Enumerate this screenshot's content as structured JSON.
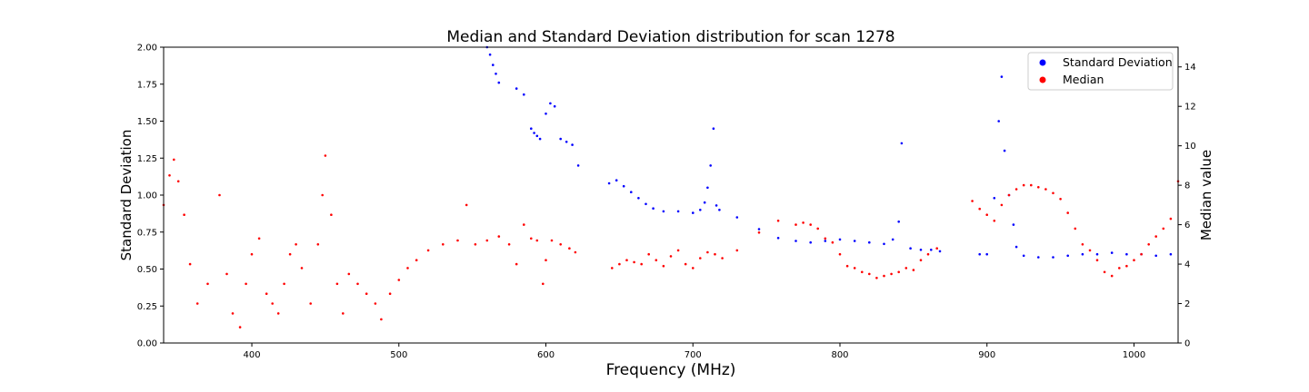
{
  "chart_data": {
    "type": "scatter",
    "title": "Median and Standard Deviation distribution for scan 1278",
    "xlabel": "Frequency (MHz)",
    "ylabel_left": "Standard Deviation",
    "ylabel_right": "Median value",
    "xlim": [
      340,
      1030
    ],
    "ylim_left": [
      0,
      2
    ],
    "ylim_right": [
      0,
      15
    ],
    "x_ticks": [
      400,
      500,
      600,
      700,
      800,
      900,
      1000
    ],
    "y_ticks_left": [
      "0.00",
      "0.25",
      "0.50",
      "0.75",
      "1.00",
      "1.25",
      "1.50",
      "1.75",
      "2.00"
    ],
    "y_ticks_right": [
      "0",
      "2",
      "4",
      "6",
      "8",
      "10",
      "12",
      "14"
    ],
    "grid": false,
    "legend_position": "top-right",
    "series": [
      {
        "name": "Standard Deviation",
        "color": "#0000ff",
        "axis": "left",
        "points": [
          [
            560,
            2.0
          ],
          [
            562,
            1.95
          ],
          [
            564,
            1.88
          ],
          [
            566,
            1.82
          ],
          [
            568,
            1.76
          ],
          [
            580,
            1.72
          ],
          [
            585,
            1.68
          ],
          [
            590,
            1.45
          ],
          [
            592,
            1.42
          ],
          [
            594,
            1.4
          ],
          [
            596,
            1.38
          ],
          [
            600,
            1.55
          ],
          [
            603,
            1.62
          ],
          [
            606,
            1.6
          ],
          [
            610,
            1.38
          ],
          [
            614,
            1.36
          ],
          [
            618,
            1.34
          ],
          [
            622,
            1.2
          ],
          [
            643,
            1.08
          ],
          [
            648,
            1.1
          ],
          [
            653,
            1.06
          ],
          [
            658,
            1.02
          ],
          [
            663,
            0.98
          ],
          [
            668,
            0.94
          ],
          [
            673,
            0.91
          ],
          [
            680,
            0.89
          ],
          [
            690,
            0.89
          ],
          [
            700,
            0.88
          ],
          [
            705,
            0.9
          ],
          [
            708,
            0.95
          ],
          [
            710,
            1.05
          ],
          [
            712,
            1.2
          ],
          [
            714,
            1.45
          ],
          [
            716,
            0.93
          ],
          [
            718,
            0.9
          ],
          [
            730,
            0.85
          ],
          [
            745,
            0.77
          ],
          [
            758,
            0.71
          ],
          [
            770,
            0.69
          ],
          [
            780,
            0.68
          ],
          [
            790,
            0.69
          ],
          [
            800,
            0.7
          ],
          [
            810,
            0.69
          ],
          [
            820,
            0.68
          ],
          [
            830,
            0.67
          ],
          [
            836,
            0.7
          ],
          [
            840,
            0.82
          ],
          [
            842,
            1.35
          ],
          [
            848,
            0.64
          ],
          [
            855,
            0.63
          ],
          [
            862,
            0.63
          ],
          [
            868,
            0.62
          ],
          [
            895,
            0.6
          ],
          [
            900,
            0.6
          ],
          [
            905,
            0.98
          ],
          [
            908,
            1.5
          ],
          [
            910,
            1.8
          ],
          [
            912,
            1.3
          ],
          [
            915,
            1.0
          ],
          [
            918,
            0.8
          ],
          [
            920,
            0.65
          ],
          [
            925,
            0.59
          ],
          [
            935,
            0.58
          ],
          [
            945,
            0.58
          ],
          [
            955,
            0.59
          ],
          [
            965,
            0.6
          ],
          [
            975,
            0.6
          ],
          [
            985,
            0.61
          ],
          [
            995,
            0.6
          ],
          [
            1005,
            0.6
          ],
          [
            1015,
            0.59
          ],
          [
            1025,
            0.6
          ]
        ]
      },
      {
        "name": "Median",
        "color": "#ff0000",
        "axis": "right",
        "points": [
          [
            340,
            7.0
          ],
          [
            344,
            8.5
          ],
          [
            347,
            9.3
          ],
          [
            350,
            8.2
          ],
          [
            354,
            6.5
          ],
          [
            358,
            4.0
          ],
          [
            363,
            2.0
          ],
          [
            370,
            3.0
          ],
          [
            378,
            7.5
          ],
          [
            383,
            3.5
          ],
          [
            387,
            1.5
          ],
          [
            392,
            0.8
          ],
          [
            396,
            3.0
          ],
          [
            400,
            4.5
          ],
          [
            405,
            5.3
          ],
          [
            410,
            2.5
          ],
          [
            414,
            2.0
          ],
          [
            418,
            1.5
          ],
          [
            422,
            3.0
          ],
          [
            426,
            4.5
          ],
          [
            430,
            5.0
          ],
          [
            434,
            3.8
          ],
          [
            440,
            2.0
          ],
          [
            445,
            5.0
          ],
          [
            448,
            7.5
          ],
          [
            450,
            9.5
          ],
          [
            454,
            6.5
          ],
          [
            458,
            3.0
          ],
          [
            462,
            1.5
          ],
          [
            466,
            3.5
          ],
          [
            472,
            3.0
          ],
          [
            478,
            2.5
          ],
          [
            484,
            2.0
          ],
          [
            488,
            1.2
          ],
          [
            494,
            2.5
          ],
          [
            500,
            3.2
          ],
          [
            506,
            3.8
          ],
          [
            512,
            4.2
          ],
          [
            520,
            4.7
          ],
          [
            530,
            5.0
          ],
          [
            540,
            5.2
          ],
          [
            546,
            7.0
          ],
          [
            552,
            5.0
          ],
          [
            560,
            5.2
          ],
          [
            568,
            5.4
          ],
          [
            575,
            5.0
          ],
          [
            580,
            4.0
          ],
          [
            585,
            6.0
          ],
          [
            590,
            5.3
          ],
          [
            594,
            5.2
          ],
          [
            598,
            3.0
          ],
          [
            600,
            4.2
          ],
          [
            604,
            5.2
          ],
          [
            610,
            5.0
          ],
          [
            616,
            4.8
          ],
          [
            620,
            4.6
          ],
          [
            645,
            3.8
          ],
          [
            650,
            4.0
          ],
          [
            655,
            4.2
          ],
          [
            660,
            4.1
          ],
          [
            665,
            4.0
          ],
          [
            670,
            4.5
          ],
          [
            675,
            4.2
          ],
          [
            680,
            3.9
          ],
          [
            685,
            4.4
          ],
          [
            690,
            4.7
          ],
          [
            695,
            4.0
          ],
          [
            700,
            3.8
          ],
          [
            705,
            4.3
          ],
          [
            710,
            4.6
          ],
          [
            715,
            4.5
          ],
          [
            720,
            4.3
          ],
          [
            730,
            4.7
          ],
          [
            745,
            5.6
          ],
          [
            758,
            6.2
          ],
          [
            770,
            6.0
          ],
          [
            775,
            6.1
          ],
          [
            780,
            6.0
          ],
          [
            785,
            5.8
          ],
          [
            790,
            5.3
          ],
          [
            795,
            5.1
          ],
          [
            800,
            4.5
          ],
          [
            805,
            3.9
          ],
          [
            810,
            3.8
          ],
          [
            815,
            3.6
          ],
          [
            820,
            3.5
          ],
          [
            825,
            3.3
          ],
          [
            830,
            3.4
          ],
          [
            835,
            3.5
          ],
          [
            840,
            3.6
          ],
          [
            845,
            3.8
          ],
          [
            850,
            3.7
          ],
          [
            855,
            4.2
          ],
          [
            860,
            4.5
          ],
          [
            866,
            4.8
          ],
          [
            890,
            7.2
          ],
          [
            895,
            6.8
          ],
          [
            900,
            6.5
          ],
          [
            905,
            6.2
          ],
          [
            910,
            7.0
          ],
          [
            915,
            7.5
          ],
          [
            920,
            7.8
          ],
          [
            925,
            8.0
          ],
          [
            930,
            8.0
          ],
          [
            935,
            7.9
          ],
          [
            940,
            7.8
          ],
          [
            945,
            7.6
          ],
          [
            950,
            7.3
          ],
          [
            955,
            6.6
          ],
          [
            960,
            5.8
          ],
          [
            965,
            5.0
          ],
          [
            970,
            4.7
          ],
          [
            975,
            4.2
          ],
          [
            980,
            3.6
          ],
          [
            985,
            3.4
          ],
          [
            990,
            3.8
          ],
          [
            995,
            3.9
          ],
          [
            1000,
            4.2
          ],
          [
            1005,
            4.5
          ],
          [
            1010,
            5.0
          ],
          [
            1015,
            5.4
          ],
          [
            1020,
            5.8
          ],
          [
            1025,
            6.3
          ],
          [
            1030,
            8.2
          ]
        ]
      }
    ]
  }
}
